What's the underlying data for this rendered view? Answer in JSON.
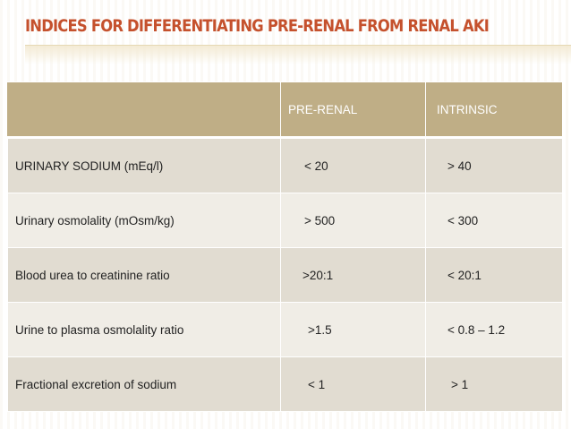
{
  "slide": {
    "title": "INDICES FOR DIFFERENTIATING PRE-RENAL FROM RENAL AKI"
  },
  "table": {
    "headers": [
      "",
      "PRE-RENAL",
      "INTRINSIC"
    ],
    "rows": [
      {
        "label": "URINARY SODIUM (mEq/l)",
        "prerenal": "< 20",
        "intrinsic": "> 40"
      },
      {
        "label": "Urinary osmolality (mOsm/kg)",
        "prerenal": "> 500",
        "intrinsic": "< 300"
      },
      {
        "label": "Blood urea to creatinine ratio",
        "prerenal": ">20:1",
        "intrinsic": "< 20:1"
      },
      {
        "label": "Urine to plasma osmolality ratio",
        "prerenal": ">1.5",
        "intrinsic": "< 0.8 – 1.2"
      },
      {
        "label": "Fractional excretion of sodium",
        "prerenal": "< 1",
        "intrinsic": "> 1"
      }
    ]
  },
  "colors": {
    "title": "#c5512d",
    "header_bg": "#bfae86",
    "row_dark": "#e1dcd1",
    "row_light": "#f0ede6"
  }
}
